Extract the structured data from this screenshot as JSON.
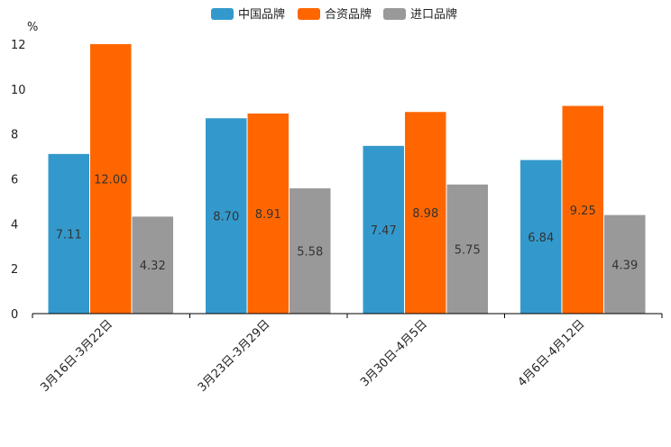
{
  "chart_data": {
    "type": "bar",
    "title": "",
    "xlabel": "",
    "ylabel": "%",
    "ylim": [
      0,
      12
    ],
    "yticks": [
      "0",
      "2",
      "4",
      "6",
      "8",
      "10",
      "12"
    ],
    "categories": [
      "3月16日-3月22日",
      "3月23日-3月29日",
      "3月30日-4月5日",
      "4月6日-4月12日"
    ],
    "series": [
      {
        "name": "中国品牌",
        "color": "#3399CC",
        "values": [
          7.11,
          8.7,
          7.47,
          6.84
        ],
        "labels": [
          "7.11",
          "8.70",
          "7.47",
          "6.84"
        ]
      },
      {
        "name": "合资品牌",
        "color": "#FF6600",
        "values": [
          12.0,
          8.91,
          8.98,
          9.25
        ],
        "labels": [
          "12.00",
          "8.91",
          "8.98",
          "9.25"
        ]
      },
      {
        "name": "进口品牌",
        "color": "#999999",
        "values": [
          4.32,
          5.58,
          5.75,
          4.39
        ],
        "labels": [
          "4.32",
          "5.58",
          "5.75",
          "4.39"
        ]
      }
    ],
    "legend_position": "top-center",
    "grid": false
  }
}
